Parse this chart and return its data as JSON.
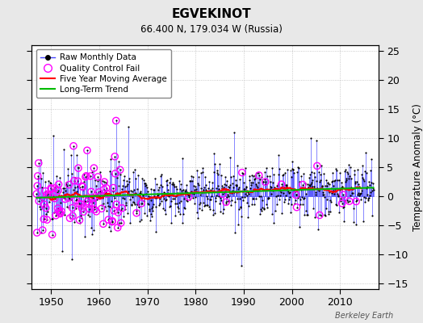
{
  "title": "EGVEKINOT",
  "subtitle": "66.400 N, 179.034 W (Russia)",
  "ylabel": "Temperature Anomaly (°C)",
  "watermark": "Berkeley Earth",
  "xlim": [
    1946,
    2018
  ],
  "ylim": [
    -16,
    26
  ],
  "yticks": [
    -15,
    -10,
    -5,
    0,
    5,
    10,
    15,
    20,
    25
  ],
  "xticks": [
    1950,
    1960,
    1970,
    1980,
    1990,
    2000,
    2010
  ],
  "start_year": 1947,
  "end_year": 2016,
  "bg_color": "#e8e8e8",
  "plot_bg_color": "#ffffff",
  "line_color": "#4444ff",
  "marker_color": "#000000",
  "qc_color": "#ff00ff",
  "ma_color": "#ff0000",
  "trend_color": "#00bb00",
  "seed": 17
}
